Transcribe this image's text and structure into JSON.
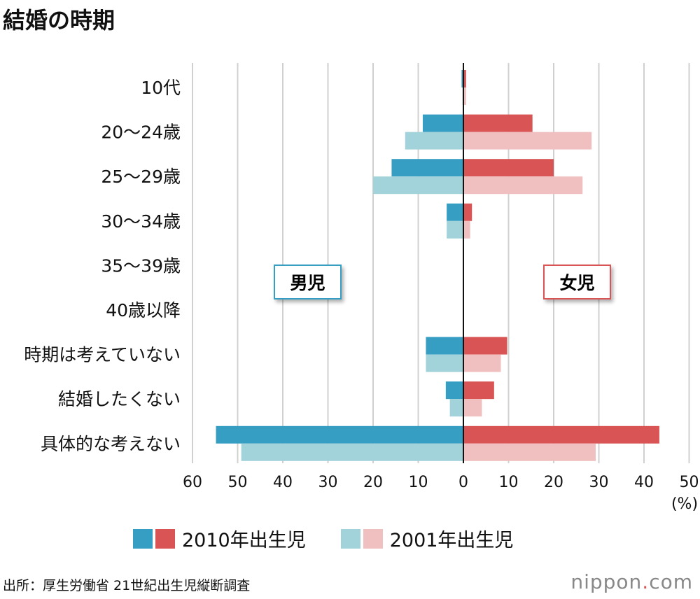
{
  "title": "結婚の時期",
  "chart_data": {
    "type": "bar",
    "orientation": "horizontal-butterfly",
    "categories": [
      "10代",
      "20〜24歳",
      "25〜29歳",
      "30〜34歳",
      "35〜39歳",
      "40歳以降",
      "時期は考えていない",
      "結婚したくない",
      "具体的な考えない"
    ],
    "groups": {
      "left": "男児",
      "right": "女児"
    },
    "series": [
      {
        "name": "2010年出生児",
        "side": "left",
        "color": "#369dc3",
        "values": [
          0.4,
          9.0,
          15.9,
          3.7,
          0,
          0,
          8.3,
          3.9,
          54.8
        ]
      },
      {
        "name": "2001年出生児",
        "side": "left",
        "color": "#a3d3da",
        "values": [
          0.2,
          12.9,
          20.0,
          3.7,
          0,
          0,
          8.3,
          3.0,
          49.2
        ]
      },
      {
        "name": "2010年出生児",
        "side": "right",
        "color": "#d95555",
        "values": [
          0.6,
          15.3,
          20.0,
          1.9,
          0,
          0,
          9.7,
          6.8,
          43.4
        ]
      },
      {
        "name": "2001年出生児",
        "side": "right",
        "color": "#f0c0c0",
        "values": [
          0.6,
          28.4,
          26.4,
          1.5,
          0,
          0,
          8.3,
          4.1,
          29.3
        ]
      }
    ],
    "left_ticks": [
      "60",
      "50",
      "40",
      "30",
      "20",
      "10"
    ],
    "right_ticks": [
      "0",
      "10",
      "20",
      "30",
      "40",
      "50"
    ],
    "xlim_left": [
      0,
      60
    ],
    "xlim_right": [
      0,
      50
    ],
    "unit": "(%)",
    "grid": true,
    "legend": [
      {
        "label": "2010年出生児",
        "colors": [
          "#369dc3",
          "#d95555"
        ]
      },
      {
        "label": "2001年出生児",
        "colors": [
          "#a3d3da",
          "#f0c0c0"
        ]
      }
    ],
    "legend_position": "bottom"
  },
  "source": "出所：厚生労働省 21世紀出生児縦断調査",
  "logo": {
    "name": "nippon",
    "dot": ".",
    "tld": "com"
  }
}
